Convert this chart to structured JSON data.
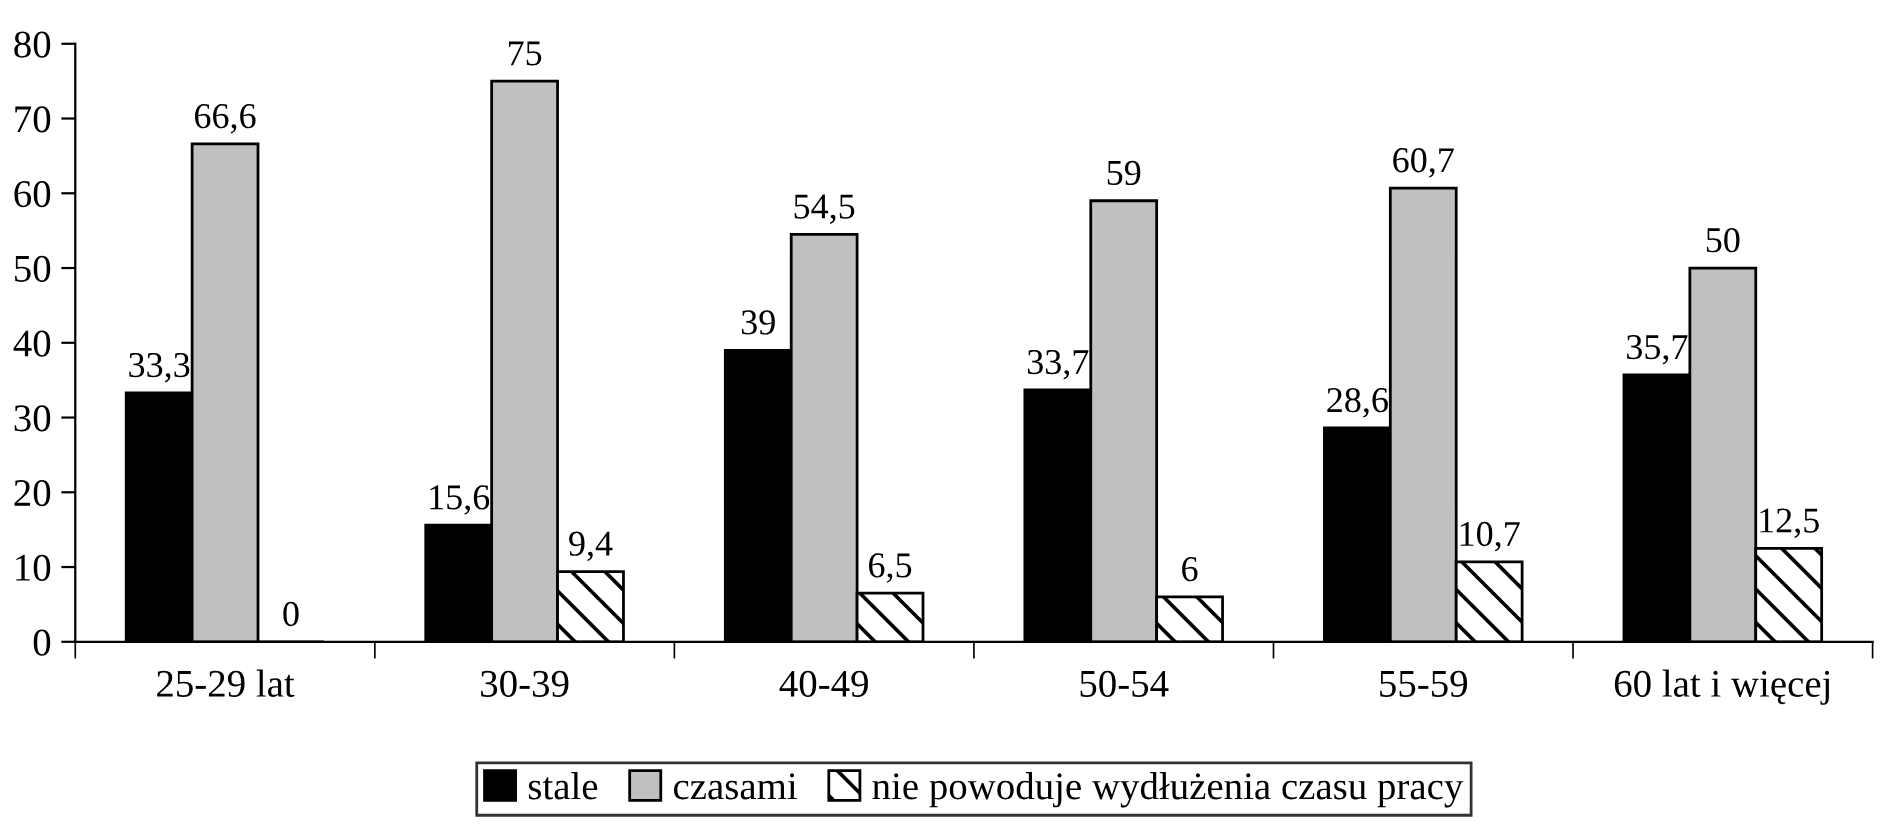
{
  "chart_data": {
    "type": "bar",
    "categories": [
      "25-29 lat",
      "30-39",
      "40-49",
      "50-54",
      "55-59",
      "60 lat i więcej"
    ],
    "series": [
      {
        "name": "stale",
        "color": "#000000",
        "values": [
          33.3,
          15.6,
          39,
          33.7,
          28.6,
          35.7
        ],
        "value_labels": [
          "33,3",
          "15,6",
          "39",
          "33,7",
          "28,6",
          "35,7"
        ]
      },
      {
        "name": "czasami",
        "color": "#c0c0c0",
        "values": [
          66.6,
          75,
          54.5,
          59,
          60.7,
          50
        ],
        "value_labels": [
          "66,6",
          "75",
          "54,5",
          "59",
          "60,7",
          "50"
        ]
      },
      {
        "name": "nie powoduje wydłużenia czasu pracy",
        "color": "#000000",
        "values": [
          0,
          9.4,
          6.5,
          6,
          10.7,
          12.5
        ],
        "value_labels": [
          "0",
          "9,4",
          "6,5",
          "6",
          "10,7",
          "12,5"
        ]
      }
    ],
    "ylim": [
      0,
      80
    ],
    "yticks": [
      0,
      10,
      20,
      30,
      40,
      50,
      60,
      70,
      80
    ],
    "grid": false,
    "legend": "bottom"
  }
}
